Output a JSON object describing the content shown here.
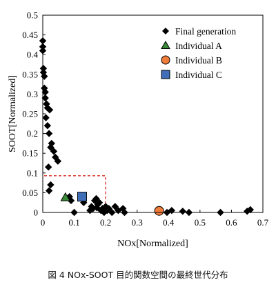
{
  "caption": "図 4 NOx-SOOT 目的関数空間の最終世代分布",
  "chart_data": {
    "type": "scatter",
    "xlabel": "NOx[Normalized]",
    "ylabel": "SOOT[Normalized]",
    "xlim": [
      0,
      0.7
    ],
    "ylim": [
      0,
      0.5
    ],
    "xticks": [
      "0",
      "0.1",
      "0.2",
      "0.3",
      "0.4",
      "0.5",
      "0.6",
      "0.7"
    ],
    "yticks": [
      "0",
      "0.05",
      "0.1",
      "0.15",
      "0.2",
      "0.25",
      "0.3",
      "0.35",
      "0.4",
      "0.45",
      "0.5"
    ],
    "grid": false,
    "legend_position": "top-right",
    "series": [
      {
        "name": "Final generation",
        "marker": "diamond",
        "color": "#000000",
        "points": [
          [
            0.0,
            0.435
          ],
          [
            0.0,
            0.42
          ],
          [
            0.0,
            0.41
          ],
          [
            0.002,
            0.365
          ],
          [
            0.002,
            0.355
          ],
          [
            0.005,
            0.345
          ],
          [
            0.005,
            0.315
          ],
          [
            0.008,
            0.305
          ],
          [
            0.008,
            0.29
          ],
          [
            0.012,
            0.275
          ],
          [
            0.015,
            0.265
          ],
          [
            0.022,
            0.26
          ],
          [
            0.01,
            0.24
          ],
          [
            0.015,
            0.22
          ],
          [
            0.02,
            0.2
          ],
          [
            0.028,
            0.175
          ],
          [
            0.025,
            0.165
          ],
          [
            0.035,
            0.155
          ],
          [
            0.04,
            0.14
          ],
          [
            0.048,
            0.13
          ],
          [
            0.018,
            0.115
          ],
          [
            0.025,
            0.07
          ],
          [
            0.02,
            0.055
          ],
          [
            0.085,
            0.04
          ],
          [
            0.09,
            0.03
          ],
          [
            0.1,
            0.0
          ],
          [
            0.13,
            0.025
          ],
          [
            0.15,
            0.005
          ],
          [
            0.155,
            0.015
          ],
          [
            0.16,
            0.01
          ],
          [
            0.165,
            0.03
          ],
          [
            0.17,
            0.035
          ],
          [
            0.172,
            0.012
          ],
          [
            0.175,
            0.02
          ],
          [
            0.18,
            0.025
          ],
          [
            0.185,
            0.005
          ],
          [
            0.19,
            0.01
          ],
          [
            0.195,
            0.0
          ],
          [
            0.2,
            0.015
          ],
          [
            0.205,
            0.005
          ],
          [
            0.21,
            0.01
          ],
          [
            0.22,
            0.0
          ],
          [
            0.23,
            0.015
          ],
          [
            0.24,
            0.005
          ],
          [
            0.255,
            0.01
          ],
          [
            0.26,
            0.0
          ],
          [
            0.395,
            0.0
          ],
          [
            0.41,
            0.005
          ],
          [
            0.445,
            0.003
          ],
          [
            0.465,
            0.0
          ],
          [
            0.565,
            0.0
          ],
          [
            0.65,
            0.003
          ],
          [
            0.66,
            0.007
          ]
        ]
      },
      {
        "name": "Individual A",
        "marker": "triangle",
        "color": "#3a8a3a",
        "points": [
          [
            0.072,
            0.038
          ]
        ]
      },
      {
        "name": "Individual B",
        "marker": "circle",
        "color": "#ee7d3b",
        "points": [
          [
            0.37,
            0.004
          ]
        ]
      },
      {
        "name": "Individual C",
        "marker": "square",
        "color": "#3e6fb8",
        "points": [
          [
            0.125,
            0.04
          ]
        ]
      }
    ],
    "reference_box": {
      "x": [
        0,
        0.2
      ],
      "y": [
        0,
        0.093
      ],
      "color": "#d9261c",
      "style": "dashed"
    }
  }
}
